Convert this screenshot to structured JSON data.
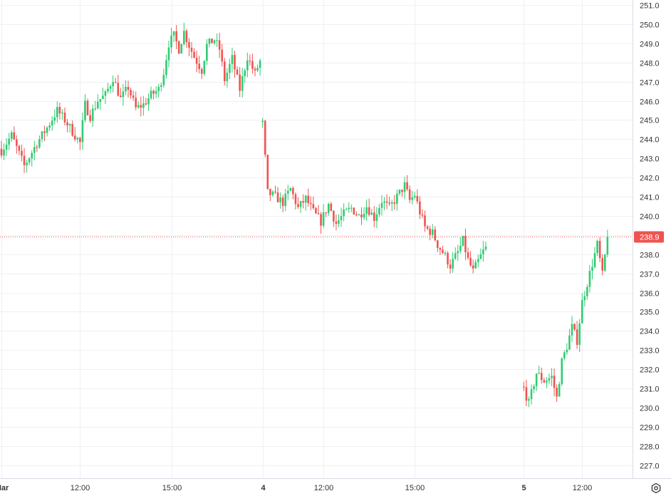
{
  "chart_data": {
    "type": "candlestick",
    "y_range": [
      226.5,
      251.2
    ],
    "y_ticks": [
      "251.0",
      "250.0",
      "249.0",
      "248.0",
      "247.0",
      "246.0",
      "245.0",
      "244.0",
      "243.0",
      "242.0",
      "241.0",
      "240.0",
      "239.0",
      "238.0",
      "237.0",
      "236.0",
      "235.0",
      "234.0",
      "233.0",
      "232.0",
      "231.0",
      "230.0",
      "229.0",
      "228.0",
      "227.0"
    ],
    "x_ticks": [
      {
        "label": "Mar",
        "bold": true,
        "bar": 0
      },
      {
        "label": "12:00",
        "bold": false,
        "bar": 31
      },
      {
        "label": "15:00",
        "bold": false,
        "bar": 67
      },
      {
        "label": "4",
        "bold": true,
        "bar": 103
      },
      {
        "label": "12:00",
        "bold": false,
        "bar": 127
      },
      {
        "label": "15:00",
        "bold": false,
        "bar": 163
      },
      {
        "label": "5",
        "bold": true,
        "bar": 206
      },
      {
        "label": "12:00",
        "bold": false,
        "bar": 229
      }
    ],
    "last_price": 238.9,
    "last_price_label": "238.9",
    "grid": true,
    "colors": {
      "up": "#26a69a",
      "up_body": "#2ecc71",
      "down": "#ef5350",
      "grid": "#eef0f3",
      "axis_text": "#333333",
      "price_label_bg": "#ef5350",
      "price_line": "#ef5350"
    },
    "sessions": [
      {
        "name": "Mar",
        "anchors": [
          [
            0,
            243.4
          ],
          [
            4,
            244.2
          ],
          [
            9,
            242.6
          ],
          [
            14,
            243.8
          ],
          [
            18,
            244.6
          ],
          [
            22,
            245.5
          ],
          [
            25,
            245.0
          ],
          [
            28,
            244.4
          ],
          [
            31,
            243.8
          ],
          [
            33,
            245.8
          ],
          [
            35,
            245.2
          ],
          [
            38,
            246.0
          ],
          [
            41,
            246.3
          ],
          [
            44,
            247.2
          ],
          [
            47,
            246.1
          ],
          [
            50,
            246.7
          ],
          [
            53,
            245.6
          ],
          [
            56,
            245.8
          ],
          [
            59,
            246.3
          ],
          [
            62,
            246.6
          ],
          [
            64,
            247.5
          ],
          [
            66,
            249.0
          ],
          [
            68,
            249.4
          ],
          [
            70,
            248.7
          ],
          [
            72,
            249.6
          ],
          [
            74,
            248.9
          ],
          [
            76,
            248.3
          ],
          [
            79,
            247.6
          ],
          [
            81,
            248.9
          ],
          [
            84,
            249.2
          ],
          [
            86,
            248.7
          ],
          [
            88,
            247.1
          ],
          [
            91,
            248.2
          ],
          [
            94,
            246.6
          ],
          [
            97,
            248.3
          ],
          [
            100,
            247.4
          ],
          [
            102,
            248.1
          ]
        ]
      },
      {
        "name": "4",
        "anchors": [
          [
            103,
            244.8
          ],
          [
            105,
            241.2
          ],
          [
            108,
            241.0
          ],
          [
            111,
            240.7
          ],
          [
            114,
            241.4
          ],
          [
            117,
            240.4
          ],
          [
            120,
            240.9
          ],
          [
            123,
            240.2
          ],
          [
            126,
            239.7
          ],
          [
            129,
            240.6
          ],
          [
            132,
            239.6
          ],
          [
            135,
            240.1
          ],
          [
            138,
            240.4
          ],
          [
            141,
            240.0
          ],
          [
            144,
            240.5
          ],
          [
            147,
            239.9
          ],
          [
            150,
            240.8
          ],
          [
            153,
            240.4
          ],
          [
            156,
            241.0
          ],
          [
            159,
            241.6
          ],
          [
            161,
            240.8
          ],
          [
            163,
            241.1
          ],
          [
            165,
            240.2
          ],
          [
            167,
            239.4
          ],
          [
            170,
            239.1
          ],
          [
            172,
            238.5
          ],
          [
            175,
            237.9
          ],
          [
            177,
            237.4
          ],
          [
            180,
            238.1
          ],
          [
            182,
            238.7
          ],
          [
            184,
            237.7
          ],
          [
            186,
            237.1
          ],
          [
            189,
            237.9
          ],
          [
            191,
            238.4
          ]
        ]
      },
      {
        "name": "5",
        "anchors": [
          [
            206,
            231.0
          ],
          [
            208,
            230.2
          ],
          [
            211,
            231.8
          ],
          [
            214,
            231.4
          ],
          [
            217,
            231.6
          ],
          [
            219,
            230.5
          ],
          [
            221,
            232.4
          ],
          [
            223,
            233.2
          ],
          [
            225,
            234.2
          ],
          [
            227,
            233.5
          ],
          [
            229,
            235.5
          ],
          [
            231,
            236.5
          ],
          [
            233,
            237.5
          ],
          [
            235,
            238.5
          ],
          [
            237,
            236.9
          ],
          [
            239,
            238.9
          ]
        ]
      }
    ]
  },
  "icons": {
    "settings": "settings-gear-icon"
  }
}
